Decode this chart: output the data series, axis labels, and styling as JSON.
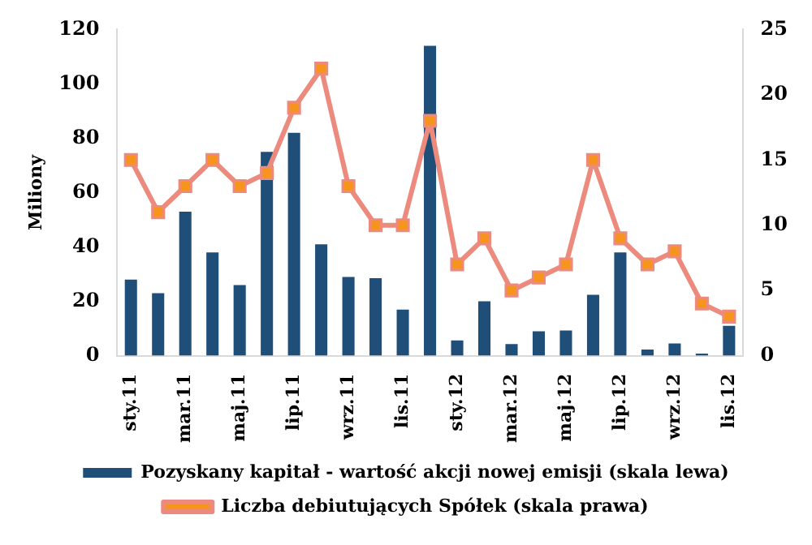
{
  "chart_data": {
    "type": "bar",
    "categories": [
      "sty.11",
      null,
      "mar.11",
      null,
      "maj.11",
      null,
      "lip.11",
      null,
      "wrz.11",
      null,
      "lis.11",
      null,
      "sty.12",
      null,
      "mar.12",
      null,
      "maj.12",
      null,
      "lip.12",
      null,
      "wrz.12",
      null,
      "lis.12"
    ],
    "ylabel": "Miliony",
    "series": [
      {
        "name": "Pozyskany kapitał - wartość akcji nowej emisji (skala lewa)",
        "color": "#1f4e79",
        "values": [
          28,
          23,
          53,
          38,
          26,
          75,
          82,
          41,
          29,
          28.5,
          17,
          114,
          5.6,
          20,
          4.3,
          9,
          9.3,
          22.4,
          38,
          2.3,
          4.5,
          0.8,
          11
        ]
      },
      {
        "name": "Liczba debiutujących Spółek (skala prawa)",
        "type": "line",
        "axis": "y2",
        "color": "#ec8a7e",
        "marker": "square",
        "values": [
          15,
          11,
          13,
          15,
          13,
          14,
          19,
          22,
          13,
          10,
          10,
          18,
          7,
          9,
          5,
          6,
          7,
          15,
          9,
          7,
          8,
          4,
          3
        ]
      }
    ],
    "ylim": [
      0,
      120
    ],
    "yticks": [
      0,
      20,
      40,
      60,
      80,
      100,
      120
    ],
    "y2lim": [
      0,
      25
    ],
    "y2ticks": [
      0,
      5,
      10,
      15,
      20,
      25
    ],
    "grid": false,
    "legend": "bottom"
  }
}
